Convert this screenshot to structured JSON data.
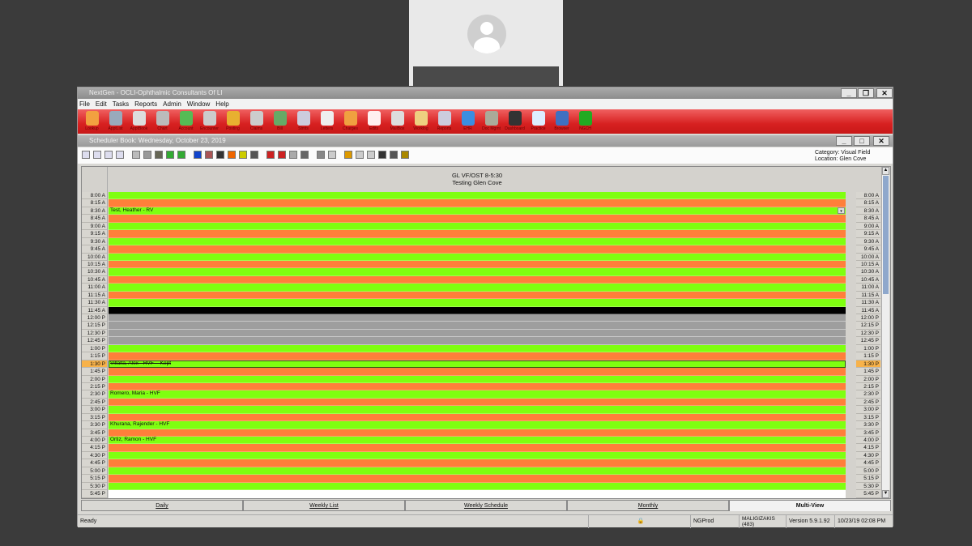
{
  "app": {
    "title": "NextGen - OCLI-Ophthalmic Consultants Of LI"
  },
  "menu": [
    "File",
    "Edit",
    "Tasks",
    "Reports",
    "Admin",
    "Window",
    "Help"
  ],
  "toolbar": [
    {
      "label": "Lookup",
      "color": "#f2a040"
    },
    {
      "label": "ApptList",
      "color": "#9ab"
    },
    {
      "label": "ApptBook",
      "color": "#ddd"
    },
    {
      "label": "Chart",
      "color": "#bbb"
    },
    {
      "label": "Account",
      "color": "#5b5"
    },
    {
      "label": "Encounter",
      "color": "#ccc"
    },
    {
      "label": "Posting",
      "color": "#e8b030"
    },
    {
      "label": "Claims",
      "color": "#ccc"
    },
    {
      "label": "Bill",
      "color": "#6a6"
    },
    {
      "label": "Stmts",
      "color": "#ccd"
    },
    {
      "label": "Letters",
      "color": "#eee"
    },
    {
      "label": "Charges",
      "color": "#f0a040"
    },
    {
      "label": "Edits",
      "color": "#fff0f0"
    },
    {
      "label": "MailBox",
      "color": "#ddd"
    },
    {
      "label": "Worklog",
      "color": "#eed080"
    },
    {
      "label": "Reports",
      "color": "#ccd"
    },
    {
      "label": "EHR",
      "color": "#3a8ee0"
    },
    {
      "label": "Doc Mgmt",
      "color": "#aa9"
    },
    {
      "label": "Dashboard",
      "color": "#333"
    },
    {
      "label": "Practice",
      "color": "#ddeeff"
    },
    {
      "label": "Browser",
      "color": "#4070c0"
    },
    {
      "label": "NGCH",
      "color": "#2a2"
    }
  ],
  "scheduler": {
    "title": "Scheduler Book: Wednesday, October 23, 2019",
    "category": "Category: Visual Field",
    "location": "Location: Glen Cove",
    "column_title": "GL VF/OST 8-5:30",
    "column_subtitle": "Testing Glen Cove",
    "colors": {
      "open": "#7fff10",
      "alt": "#ff7f3a",
      "lunch_start": "#000000",
      "blocked": "#9e9e9e",
      "end": "#ffffff"
    },
    "slots": [
      {
        "time": "8:00 A",
        "type": "green"
      },
      {
        "time": "8:15 A",
        "type": "orange"
      },
      {
        "time": "8:30 A",
        "type": "green",
        "appt": "Test, Heather - RV"
      },
      {
        "time": "8:45 A",
        "type": "orange"
      },
      {
        "time": "9:00 A",
        "type": "green"
      },
      {
        "time": "9:15 A",
        "type": "orange"
      },
      {
        "time": "9:30 A",
        "type": "green"
      },
      {
        "time": "9:45 A",
        "type": "orange"
      },
      {
        "time": "10:00 A",
        "type": "green"
      },
      {
        "time": "10:15 A",
        "type": "orange"
      },
      {
        "time": "10:30 A",
        "type": "green"
      },
      {
        "time": "10:45 A",
        "type": "orange"
      },
      {
        "time": "11:00 A",
        "type": "green"
      },
      {
        "time": "11:15 A",
        "type": "orange"
      },
      {
        "time": "11:30 A",
        "type": "green"
      },
      {
        "time": "11:45 A",
        "type": "black"
      },
      {
        "time": "12:00 P",
        "type": "gray"
      },
      {
        "time": "12:15 P",
        "type": "gray"
      },
      {
        "time": "12:30 P",
        "type": "gray"
      },
      {
        "time": "12:45 P",
        "type": "gray"
      },
      {
        "time": "1:00 P",
        "type": "green"
      },
      {
        "time": "1:15 P",
        "type": "orange"
      },
      {
        "time": "1:30 P",
        "type": "green",
        "appt": "Villalta, Alex - HVF -- Kept",
        "strike": true,
        "selected": true
      },
      {
        "time": "1:45 P",
        "type": "orange"
      },
      {
        "time": "2:00 P",
        "type": "green"
      },
      {
        "time": "2:15 P",
        "type": "orange"
      },
      {
        "time": "2:30 P",
        "type": "green",
        "appt": "Romero, Maria - HVF"
      },
      {
        "time": "2:45 P",
        "type": "orange"
      },
      {
        "time": "3:00 P",
        "type": "green"
      },
      {
        "time": "3:15 P",
        "type": "orange"
      },
      {
        "time": "3:30 P",
        "type": "green",
        "appt": "Khurana, Rajender - HVF"
      },
      {
        "time": "3:45 P",
        "type": "orange"
      },
      {
        "time": "4:00 P",
        "type": "green",
        "appt": "Ortiz, Ramon - HVF"
      },
      {
        "time": "4:15 P",
        "type": "orange"
      },
      {
        "time": "4:30 P",
        "type": "green"
      },
      {
        "time": "4:45 P",
        "type": "orange"
      },
      {
        "time": "5:00 P",
        "type": "green"
      },
      {
        "time": "5:15 P",
        "type": "orange"
      },
      {
        "time": "5:30 P",
        "type": "green"
      },
      {
        "time": "5:45 P",
        "type": "white"
      }
    ],
    "tabs": [
      {
        "label": "Daily"
      },
      {
        "label": "Weekly List"
      },
      {
        "label": "Weekly Schedule"
      },
      {
        "label": "Monthly"
      },
      {
        "label": "Multi-View",
        "active": true
      }
    ]
  },
  "status": {
    "text": "Ready",
    "db": "NGProd",
    "user": "MALIGIZAKIS (483)",
    "version": "Version 5.9.1.92",
    "datetime": "10/23/19 02:08 PM"
  }
}
